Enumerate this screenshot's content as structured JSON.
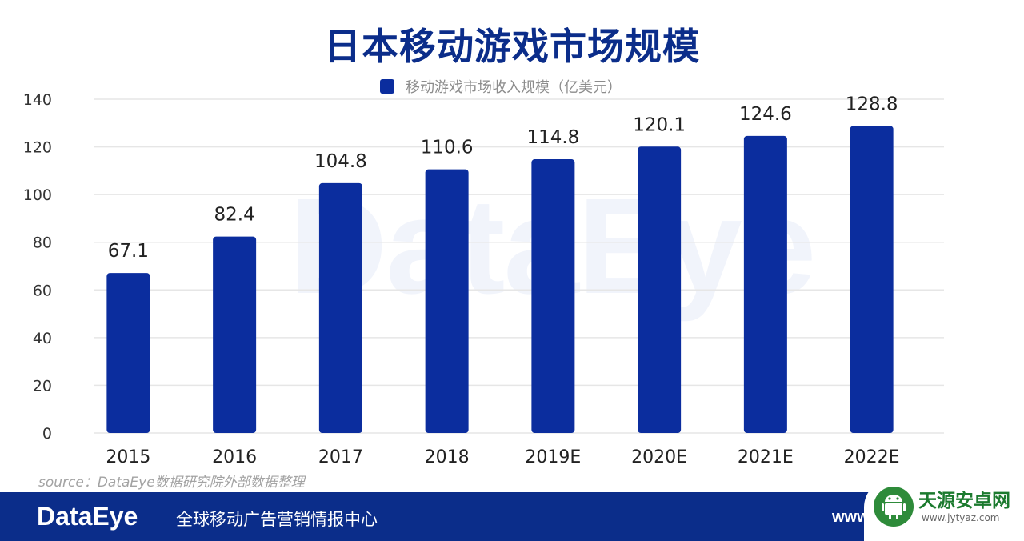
{
  "chart_data": {
    "type": "bar",
    "title": "日本移动游戏市场规模",
    "legend": [
      "移动游戏市场收入规模（亿美元）"
    ],
    "categories": [
      "2015",
      "2016",
      "2017",
      "2018",
      "2019E",
      "2020E",
      "2021E",
      "2022E"
    ],
    "series": [
      {
        "name": "移动游戏市场收入规模（亿美元）",
        "values": [
          67.1,
          82.4,
          104.8,
          110.6,
          114.8,
          120.1,
          124.6,
          128.8
        ],
        "labels": [
          "67.1",
          "82.4",
          "104.8",
          "110.6",
          "114.8",
          "120.1",
          "124.6",
          "128.8"
        ],
        "color": "#0b2d9e"
      }
    ],
    "ylim": [
      0,
      140
    ],
    "yticks": [
      "0",
      "20",
      "40",
      "60",
      "80",
      "100",
      "120",
      "140"
    ],
    "grid": true,
    "legend_position": "top-center"
  },
  "watermark": "DataEye",
  "source": "source：DataEye数据研究院外部数据整理",
  "footer": {
    "logo": "DataEye",
    "tagline": "全球移动广告营销情报中心",
    "url": "www"
  },
  "badge": {
    "name": "天源安卓网",
    "url": "www.jytyaz.com"
  },
  "colors": {
    "bar": "#0b2d9e",
    "title": "#0b2d8a",
    "footer": "#0b2d8a",
    "grid": "#e6e6e6"
  }
}
